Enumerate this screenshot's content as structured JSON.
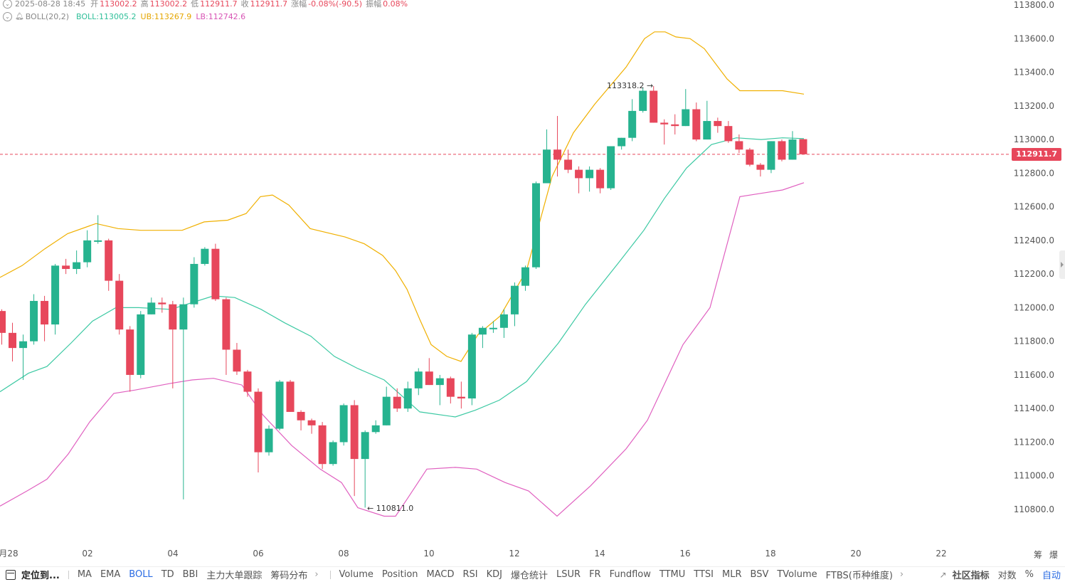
{
  "header": {
    "row1": {
      "datetime": "2025-08-28 18:45",
      "open_label": "开",
      "open": "113002.2",
      "high_label": "高",
      "high": "113002.2",
      "low_label": "低",
      "low": "112911.7",
      "close_label": "收",
      "close": "112911.7",
      "change_label": "涨幅",
      "change": "-0.08%(-90.5)",
      "amp_label": "振幅",
      "amp": "0.08%"
    },
    "row2": {
      "indicator": "BOLL(20,2)",
      "boll_text": "BOLL:113005.2",
      "ub_text": "UB:113267.9",
      "lb_text": "LB:112742.6"
    }
  },
  "colors": {
    "up": "#26b38f",
    "down": "#e7475b",
    "mid": "#3cc9a3",
    "upper": "#f0b000",
    "lower": "#e060c0",
    "price_line": "#e7475b"
  },
  "chart_data": {
    "type": "candlestick",
    "ylim": [
      110600,
      113850
    ],
    "y_ticks": [
      "113800.0",
      "113600.0",
      "113400.0",
      "113200.0",
      "113000.0",
      "112800.0",
      "112600.0",
      "112400.0",
      "112200.0",
      "112000.0",
      "111800.0",
      "111600.0",
      "111400.0",
      "111200.0",
      "111000.0",
      "110800.0"
    ],
    "x_ticks": [
      "28",
      "02",
      "04",
      "06",
      "08",
      "10",
      "12",
      "14",
      "16",
      "18",
      "20",
      "22"
    ],
    "x_tick_prefix": "月",
    "current_price": "112911.7",
    "annotations": {
      "high": "113318.2",
      "low": "110811.0"
    },
    "candles": [
      [
        111980,
        111850,
        111990,
        111780
      ],
      [
        111850,
        111760,
        111910,
        111680
      ],
      [
        111760,
        111800,
        111840,
        111570
      ],
      [
        111800,
        112040,
        112080,
        111780
      ],
      [
        112040,
        111900,
        112070,
        111800
      ],
      [
        111900,
        112250,
        112260,
        111840
      ],
      [
        112250,
        112230,
        112290,
        112200
      ],
      [
        112230,
        112270,
        112340,
        112200
      ],
      [
        112270,
        112400,
        112460,
        112240
      ],
      [
        112400,
        112400,
        112550,
        112380
      ],
      [
        112400,
        112160,
        112410,
        112100
      ],
      [
        112160,
        111870,
        112200,
        111840
      ],
      [
        111870,
        111600,
        111890,
        111500
      ],
      [
        111600,
        111960,
        111980,
        111580
      ],
      [
        111960,
        112030,
        112060,
        111960
      ],
      [
        112030,
        112020,
        112060,
        111970
      ],
      [
        112020,
        111870,
        112040,
        111520
      ],
      [
        111870,
        112020,
        112060,
        110860
      ],
      [
        112020,
        112260,
        112300,
        112000
      ],
      [
        112260,
        112350,
        112360,
        112250
      ],
      [
        112350,
        112050,
        112380,
        112040
      ],
      [
        112050,
        111750,
        112060,
        111600
      ],
      [
        111750,
        111620,
        111790,
        111600
      ],
      [
        111620,
        111500,
        111630,
        111470
      ],
      [
        111500,
        111140,
        111520,
        111020
      ],
      [
        111140,
        111280,
        111300,
        111120
      ],
      [
        111280,
        111560,
        111570,
        111270
      ],
      [
        111560,
        111380,
        111570,
        111380
      ],
      [
        111380,
        111330,
        111390,
        111270
      ],
      [
        111330,
        111300,
        111340,
        111250
      ],
      [
        111300,
        111070,
        111320,
        111040
      ],
      [
        111070,
        111200,
        111210,
        111060
      ],
      [
        111200,
        111420,
        111430,
        111180
      ],
      [
        111420,
        111100,
        111450,
        110880
      ],
      [
        111100,
        111260,
        111270,
        110811
      ],
      [
        111260,
        111300,
        111330,
        111250
      ],
      [
        111300,
        111470,
        111530,
        111300
      ],
      [
        111470,
        111400,
        111520,
        111380
      ],
      [
        111400,
        111520,
        111560,
        111380
      ],
      [
        111520,
        111620,
        111640,
        111480
      ],
      [
        111620,
        111540,
        111700,
        111540
      ],
      [
        111540,
        111580,
        111600,
        111420
      ],
      [
        111580,
        111470,
        111590,
        111430
      ],
      [
        111470,
        111460,
        111560,
        111400
      ],
      [
        111460,
        111840,
        111850,
        111420
      ],
      [
        111840,
        111880,
        111890,
        111760
      ],
      [
        111880,
        111880,
        111920,
        111850
      ],
      [
        111880,
        111960,
        111990,
        111820
      ],
      [
        111960,
        112130,
        112150,
        111890
      ],
      [
        112130,
        112240,
        112250,
        112100
      ],
      [
        112240,
        112740,
        112750,
        112230
      ],
      [
        112740,
        112940,
        113060,
        112740
      ],
      [
        112940,
        112880,
        113140,
        112780
      ],
      [
        112880,
        112820,
        112940,
        112800
      ],
      [
        112820,
        112770,
        112840,
        112680
      ],
      [
        112770,
        112820,
        112840,
        112690
      ],
      [
        112820,
        112710,
        112830,
        112680
      ],
      [
        112710,
        112960,
        112960,
        112700
      ],
      [
        112960,
        113010,
        113010,
        112940
      ],
      [
        113010,
        113170,
        113240,
        112990
      ],
      [
        113170,
        113290,
        113310,
        113160
      ],
      [
        113290,
        113100,
        113318,
        113100
      ],
      [
        113100,
        113090,
        113120,
        112970
      ],
      [
        113090,
        113080,
        113150,
        113030
      ],
      [
        113080,
        113180,
        113300,
        113080
      ],
      [
        113180,
        113000,
        113220,
        112990
      ],
      [
        113000,
        113110,
        113230,
        113000
      ],
      [
        113110,
        113080,
        113130,
        113040
      ],
      [
        113080,
        112990,
        113110,
        112980
      ],
      [
        112990,
        112940,
        113030,
        112920
      ],
      [
        112940,
        112850,
        112950,
        112840
      ],
      [
        112850,
        112820,
        112860,
        112780
      ],
      [
        112820,
        112990,
        112990,
        112800
      ],
      [
        112990,
        112880,
        113000,
        112870
      ],
      [
        112880,
        113000,
        113050,
        112880
      ],
      [
        113002,
        112912,
        113002,
        112912
      ]
    ],
    "upper_band": [
      [
        0,
        112180
      ],
      [
        31,
        112250
      ],
      [
        63,
        112350
      ],
      [
        95,
        112440
      ],
      [
        135,
        112500
      ],
      [
        166,
        112470
      ],
      [
        198,
        112460
      ],
      [
        256,
        112460
      ],
      [
        287,
        112510
      ],
      [
        320,
        112520
      ],
      [
        346,
        112560
      ],
      [
        366,
        112660
      ],
      [
        383,
        112670
      ],
      [
        406,
        112610
      ],
      [
        436,
        112470
      ],
      [
        485,
        112420
      ],
      [
        512,
        112380
      ],
      [
        538,
        112310
      ],
      [
        556,
        112220
      ],
      [
        572,
        112110
      ],
      [
        590,
        111930
      ],
      [
        606,
        111780
      ],
      [
        628,
        111710
      ],
      [
        648,
        111680
      ],
      [
        672,
        111840
      ],
      [
        703,
        111950
      ],
      [
        740,
        112220
      ],
      [
        776,
        112780
      ],
      [
        806,
        113040
      ],
      [
        836,
        113210
      ],
      [
        880,
        113430
      ],
      [
        906,
        113600
      ],
      [
        920,
        113640
      ],
      [
        935,
        113640
      ],
      [
        950,
        113610
      ],
      [
        970,
        113600
      ],
      [
        990,
        113540
      ],
      [
        1022,
        113360
      ],
      [
        1040,
        113290
      ],
      [
        1065,
        113290
      ],
      [
        1100,
        113290
      ],
      [
        1130,
        113270
      ]
    ],
    "mid_band": [
      [
        0,
        111500
      ],
      [
        40,
        111610
      ],
      [
        66,
        111650
      ],
      [
        100,
        111790
      ],
      [
        130,
        111920
      ],
      [
        163,
        112000
      ],
      [
        195,
        112000
      ],
      [
        240,
        111990
      ],
      [
        300,
        112070
      ],
      [
        330,
        112060
      ],
      [
        367,
        111990
      ],
      [
        400,
        111910
      ],
      [
        437,
        111830
      ],
      [
        470,
        111710
      ],
      [
        502,
        111640
      ],
      [
        540,
        111570
      ],
      [
        590,
        111380
      ],
      [
        640,
        111350
      ],
      [
        668,
        111390
      ],
      [
        702,
        111450
      ],
      [
        740,
        111560
      ],
      [
        785,
        111790
      ],
      [
        823,
        112020
      ],
      [
        870,
        112270
      ],
      [
        905,
        112460
      ],
      [
        934,
        112650
      ],
      [
        965,
        112830
      ],
      [
        1000,
        112970
      ],
      [
        1035,
        113010
      ],
      [
        1070,
        113000
      ],
      [
        1100,
        113010
      ],
      [
        1130,
        113005
      ]
    ],
    "lower_band": [
      [
        0,
        110820
      ],
      [
        38,
        110910
      ],
      [
        66,
        110980
      ],
      [
        96,
        111130
      ],
      [
        126,
        111320
      ],
      [
        160,
        111490
      ],
      [
        190,
        111510
      ],
      [
        240,
        111550
      ],
      [
        270,
        111570
      ],
      [
        300,
        111580
      ],
      [
        340,
        111540
      ],
      [
        370,
        111360
      ],
      [
        410,
        111180
      ],
      [
        450,
        111040
      ],
      [
        480,
        110960
      ],
      [
        503,
        110810
      ],
      [
        540,
        110760
      ],
      [
        556,
        110760
      ],
      [
        572,
        110860
      ],
      [
        600,
        111040
      ],
      [
        640,
        111050
      ],
      [
        670,
        111040
      ],
      [
        710,
        110960
      ],
      [
        743,
        110910
      ],
      [
        783,
        110760
      ],
      [
        830,
        110940
      ],
      [
        880,
        111160
      ],
      [
        910,
        111330
      ],
      [
        930,
        111510
      ],
      [
        960,
        111780
      ],
      [
        998,
        112000
      ],
      [
        1040,
        112660
      ],
      [
        1070,
        112680
      ],
      [
        1100,
        112700
      ],
      [
        1130,
        112743
      ]
    ]
  },
  "toolbar": {
    "locate": "定位到...",
    "main_indicators": [
      "MA",
      "EMA",
      "BOLL",
      "TD",
      "BBI",
      "主力大单跟踪",
      "筹码分布"
    ],
    "sub_indicators": [
      "Volume",
      "Position",
      "MACD",
      "RSI",
      "KDJ",
      "爆仓统计",
      "LSUR",
      "FR",
      "Fundflow",
      "TTMU",
      "TTSI",
      "MLR",
      "BSV",
      "TVolume",
      "FTBS(币种维度)"
    ],
    "community": "社区指标",
    "log": "对数",
    "percent": "%",
    "auto": "自动"
  },
  "corner": {
    "left_char": "筹",
    "right_char": "爆"
  }
}
